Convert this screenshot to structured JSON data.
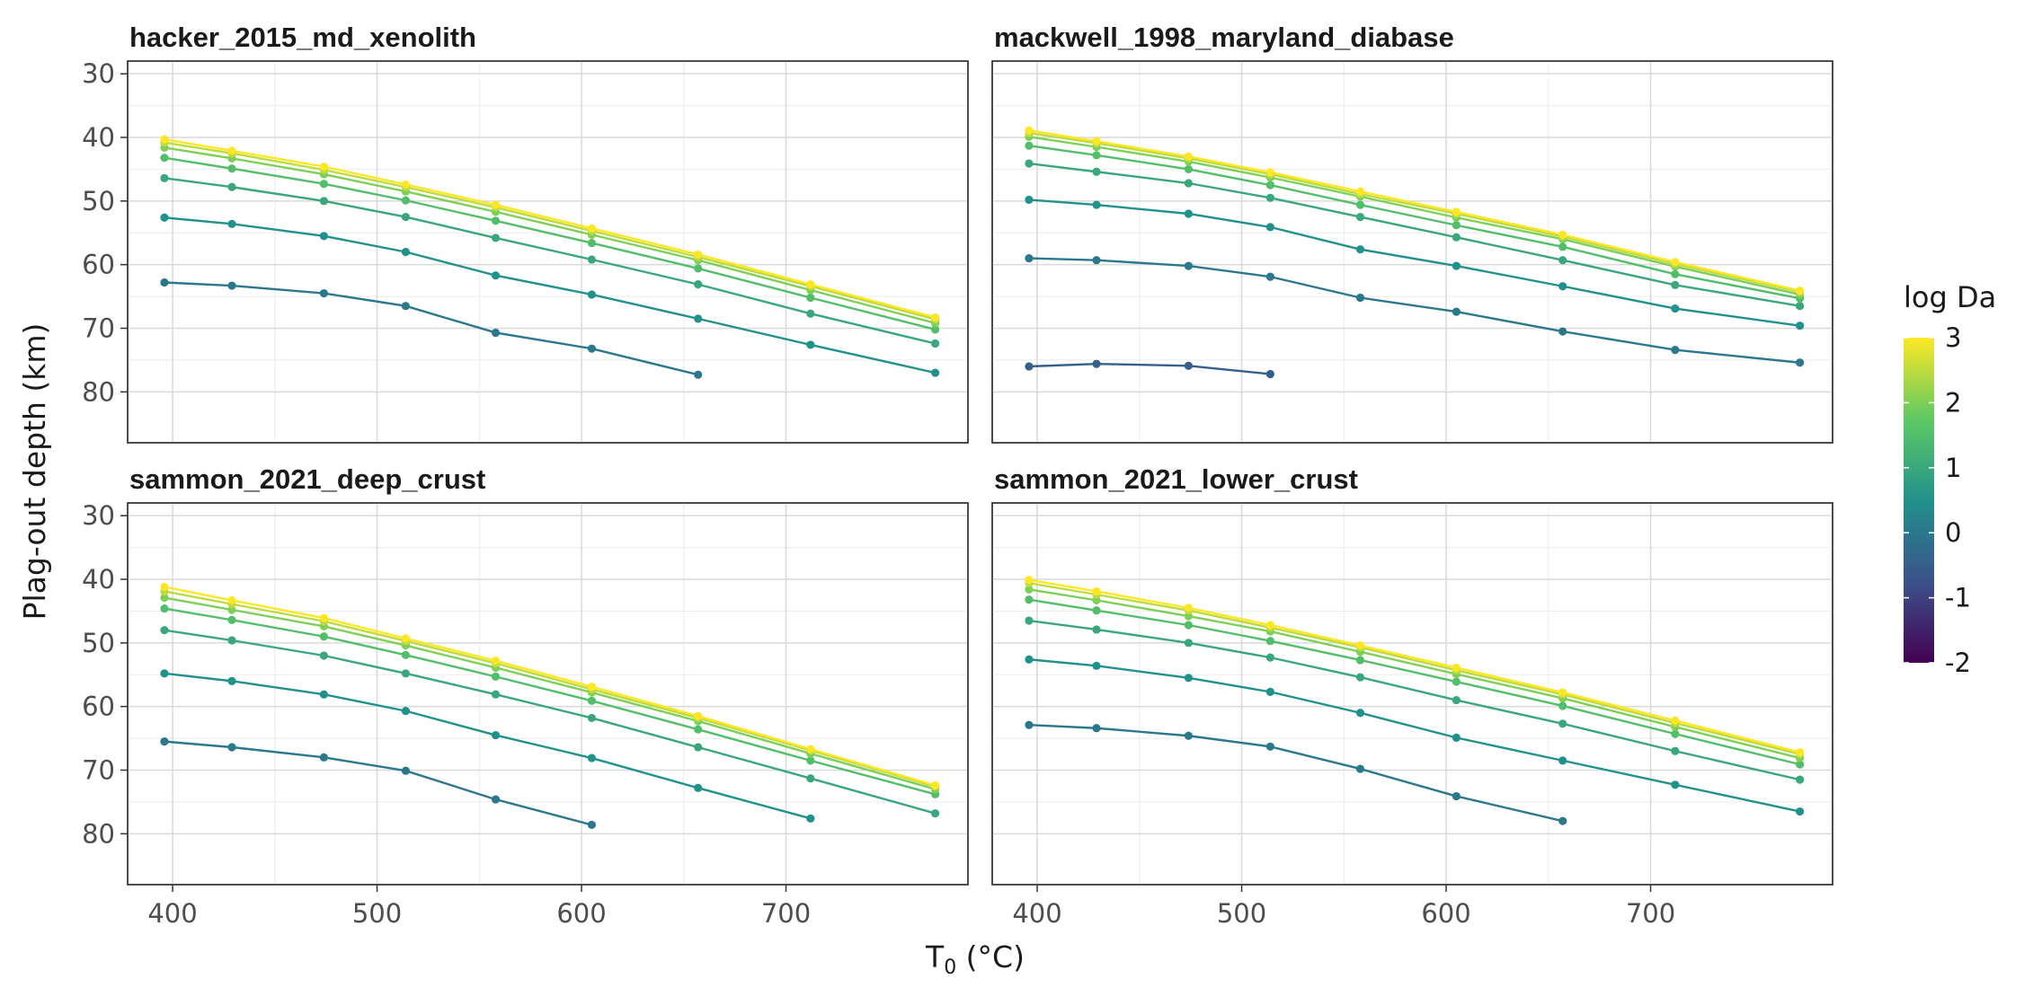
{
  "chart_data": {
    "type": "line",
    "xlabel_main": "T",
    "xlabel_sub": "0",
    "xlabel_unit": " (°C)",
    "ylabel": "Plag-out depth (km)",
    "xlim": [
      378,
      789
    ],
    "ylim": [
      28,
      88
    ],
    "y_reversed": true,
    "x_ticks": [
      400,
      500,
      600,
      700
    ],
    "y_ticks": [
      30,
      40,
      50,
      60,
      70,
      80
    ],
    "grid": true,
    "facet_layout": "2x2",
    "colorbar": {
      "title": "log Da",
      "min": -2,
      "max": 3,
      "ticks": [
        3,
        2,
        1,
        0,
        -1,
        -2
      ],
      "palette": [
        "#440154",
        "#3b528b",
        "#21918c",
        "#5ec962",
        "#fde725"
      ],
      "placement": "right"
    },
    "x": [
      396,
      429,
      474,
      514,
      558,
      605,
      657,
      712,
      773
    ],
    "panels": [
      {
        "title": "hacker_2015_md_xenolith",
        "series": [
          {
            "logDa": 0.0,
            "values": [
              62.8,
              63.3,
              64.5,
              66.5,
              70.7,
              73.2,
              77.3,
              null,
              null
            ]
          },
          {
            "logDa": 0.5,
            "values": [
              52.6,
              53.6,
              55.5,
              58.0,
              61.7,
              64.7,
              68.5,
              72.6,
              77.0
            ]
          },
          {
            "logDa": 1.0,
            "values": [
              46.4,
              47.8,
              50.0,
              52.5,
              55.8,
              59.2,
              63.1,
              67.7,
              72.4
            ]
          },
          {
            "logDa": 1.5,
            "values": [
              43.2,
              44.9,
              47.3,
              49.9,
              53.1,
              56.6,
              60.6,
              65.2,
              70.2
            ]
          },
          {
            "logDa": 2.0,
            "values": [
              41.6,
              43.3,
              45.8,
              48.5,
              51.7,
              55.3,
              59.3,
              64.0,
              69.2
            ]
          },
          {
            "logDa": 2.5,
            "values": [
              40.8,
              42.5,
              45.1,
              47.8,
              51.0,
              54.7,
              58.8,
              63.4,
              68.6
            ]
          },
          {
            "logDa": 3.0,
            "values": [
              40.3,
              42.1,
              44.6,
              47.4,
              50.6,
              54.3,
              58.4,
              63.1,
              68.3
            ]
          }
        ]
      },
      {
        "title": "mackwell_1998_maryland_diabase",
        "series": [
          {
            "logDa": -0.5,
            "values": [
              76.0,
              75.6,
              75.9,
              77.2,
              null,
              null,
              null,
              null,
              null
            ]
          },
          {
            "logDa": 0.0,
            "values": [
              59.0,
              59.3,
              60.2,
              61.9,
              65.2,
              67.4,
              70.5,
              73.4,
              75.4
            ]
          },
          {
            "logDa": 0.5,
            "values": [
              49.8,
              50.6,
              52.0,
              54.1,
              57.6,
              60.2,
              63.4,
              66.9,
              69.6
            ]
          },
          {
            "logDa": 1.0,
            "values": [
              44.1,
              45.4,
              47.2,
              49.5,
              52.5,
              55.7,
              59.3,
              63.2,
              66.5
            ]
          },
          {
            "logDa": 1.5,
            "values": [
              41.3,
              42.8,
              45.0,
              47.5,
              50.6,
              53.8,
              57.2,
              61.5,
              65.3
            ]
          },
          {
            "logDa": 2.0,
            "values": [
              39.9,
              41.5,
              43.8,
              46.3,
              49.3,
              52.6,
              56.0,
              60.3,
              64.7
            ]
          },
          {
            "logDa": 2.5,
            "values": [
              39.3,
              40.9,
              43.3,
              45.8,
              48.9,
              52.0,
              55.6,
              59.9,
              64.3
            ]
          },
          {
            "logDa": 3.0,
            "values": [
              38.9,
              40.6,
              43.0,
              45.5,
              48.5,
              51.7,
              55.3,
              59.6,
              64.1
            ]
          }
        ]
      },
      {
        "title": "sammon_2021_deep_crust",
        "series": [
          {
            "logDa": 0.0,
            "values": [
              65.5,
              66.4,
              68.0,
              70.1,
              74.6,
              78.6,
              null,
              null,
              null
            ]
          },
          {
            "logDa": 0.5,
            "values": [
              54.8,
              56.0,
              58.1,
              60.7,
              64.5,
              68.1,
              72.8,
              77.6,
              null
            ]
          },
          {
            "logDa": 1.0,
            "values": [
              48.0,
              49.6,
              52.0,
              54.8,
              58.1,
              61.8,
              66.4,
              71.3,
              76.8
            ]
          },
          {
            "logDa": 1.5,
            "values": [
              44.6,
              46.4,
              49.0,
              51.9,
              55.3,
              59.1,
              63.6,
              68.5,
              73.8
            ]
          },
          {
            "logDa": 2.0,
            "values": [
              42.9,
              44.8,
              47.4,
              50.4,
              53.9,
              57.8,
              62.3,
              67.4,
              73.0
            ]
          },
          {
            "logDa": 2.5,
            "values": [
              41.9,
              43.9,
              46.6,
              49.7,
              53.2,
              57.3,
              61.8,
              66.9,
              72.6
            ]
          },
          {
            "logDa": 3.0,
            "values": [
              41.2,
              43.3,
              46.1,
              49.3,
              52.8,
              56.9,
              61.5,
              66.7,
              72.4
            ]
          }
        ]
      },
      {
        "title": "sammon_2021_lower_crust",
        "series": [
          {
            "logDa": 0.0,
            "values": [
              62.9,
              63.4,
              64.6,
              66.3,
              69.8,
              74.1,
              78.0,
              null,
              null
            ]
          },
          {
            "logDa": 0.5,
            "values": [
              52.6,
              53.6,
              55.5,
              57.7,
              61.0,
              64.9,
              68.5,
              72.3,
              76.5
            ]
          },
          {
            "logDa": 1.0,
            "values": [
              46.5,
              47.9,
              50.0,
              52.3,
              55.4,
              59.0,
              62.7,
              67.0,
              71.5
            ]
          },
          {
            "logDa": 1.5,
            "values": [
              43.2,
              44.9,
              47.2,
              49.7,
              52.7,
              56.1,
              59.9,
              64.3,
              69.1
            ]
          },
          {
            "logDa": 2.0,
            "values": [
              41.6,
              43.3,
              45.8,
              48.2,
              51.4,
              54.9,
              58.7,
              63.2,
              68.1
            ]
          },
          {
            "logDa": 2.5,
            "values": [
              40.6,
              42.4,
              44.9,
              47.6,
              50.7,
              54.3,
              58.1,
              62.6,
              67.5
            ]
          },
          {
            "logDa": 3.0,
            "values": [
              40.1,
              41.9,
              44.5,
              47.2,
              50.4,
              53.9,
              57.8,
              62.2,
              67.2
            ]
          }
        ]
      }
    ]
  }
}
